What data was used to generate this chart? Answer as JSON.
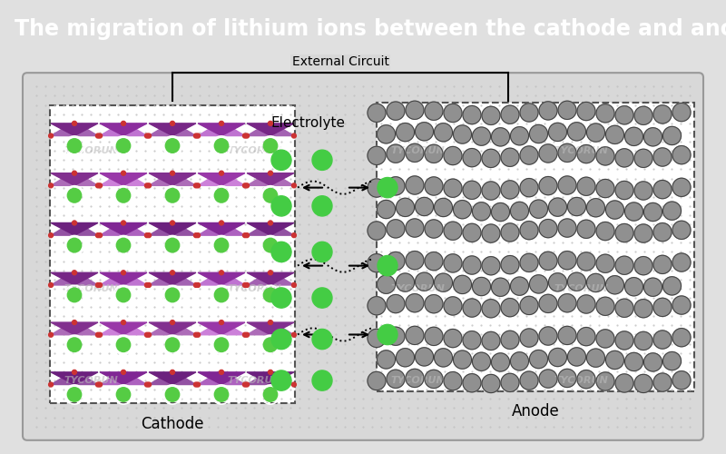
{
  "title": "The migration of lithium ions between the cathode and anode",
  "title_bg": "#333333",
  "title_color": "#ffffff",
  "title_fontsize": 17,
  "bg_outer": "#e0e0e0",
  "bg_inner": "#d4d4d4",
  "external_circuit_label": "External Circuit",
  "electrolyte_label": "Electrolyte",
  "cathode_label": "Cathode",
  "anode_label": "Anode",
  "green_color": "#44cc44",
  "watermark_text": "TYCORUN"
}
